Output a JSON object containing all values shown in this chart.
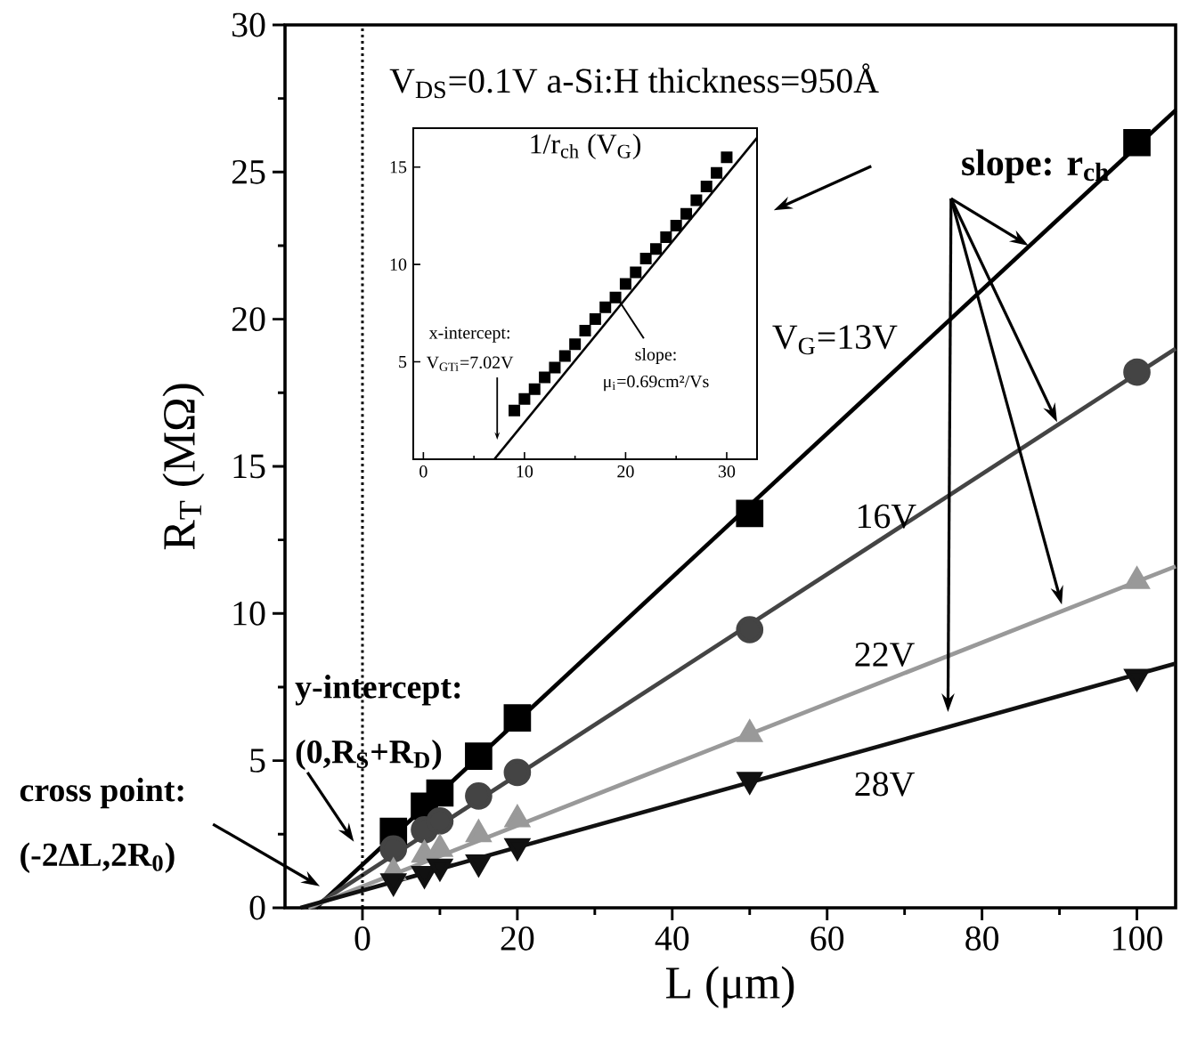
{
  "chart_data": [
    {
      "type": "scatter",
      "xlabel": "L (μm)",
      "ylabel": "R$_{T}$ (MΩ)",
      "xlim": [
        -10,
        105
      ],
      "ylim": [
        0,
        30
      ],
      "xticks": [
        0,
        20,
        40,
        60,
        80,
        100
      ],
      "yticks": [
        0,
        5,
        10,
        15,
        20,
        25,
        30
      ],
      "x": [
        4,
        8,
        10,
        15,
        20,
        50,
        100
      ],
      "series": [
        {
          "color": "#000000",
          "marker": "square",
          "values": [
            2.6,
            3.45,
            3.9,
            5.15,
            6.45,
            13.4,
            26
          ]
        },
        {
          "color": "#444444",
          "marker": "circle",
          "values": [
            2.0,
            2.65,
            2.95,
            3.8,
            4.6,
            9.45,
            18.2
          ]
        },
        {
          "color": "#999999",
          "marker": "triangle",
          "values": [
            1.2,
            1.8,
            2.0,
            2.5,
            3.0,
            5.9,
            11.1
          ]
        },
        {
          "color": "#111111",
          "marker": "triangle-down",
          "values": [
            0.9,
            1.15,
            1.4,
            1.55,
            2.1,
            4.35,
            7.85
          ]
        },
        {
          "type": "line",
          "name": "V$_{G}$=13V",
          "color": "#000000",
          "x": [
            -6,
            105
          ],
          "values": [
            0,
            27.1
          ]
        },
        {
          "type": "line",
          "name": "16V",
          "color": "#444444",
          "x": [
            -6.5,
            105
          ],
          "values": [
            0,
            19.0
          ]
        },
        {
          "type": "line",
          "name": "22V",
          "color": "#999999",
          "x": [
            -7,
            105
          ],
          "values": [
            0,
            11.6
          ]
        },
        {
          "type": "line",
          "name": "28V",
          "color": "#111111",
          "x": [
            -8,
            105
          ],
          "values": [
            0,
            8.3
          ]
        }
      ],
      "ref_lines": [
        {
          "axis": "x",
          "value": 0,
          "line_style": "dotted"
        }
      ],
      "annotations": [
        "V$_{DS}$=0.1V a-Si:H thickness=950Å",
        "slope: r$_{ch}$",
        "y-intercept:",
        "(0,R$_{S}$+R$_{D}$)",
        "cross point:",
        "(-2ΔL,2R$_{0}$)"
      ]
    },
    {
      "type": "scatter",
      "title": "1/r$_{ch}$ (V$_{G}$)",
      "xlim": [
        -1,
        33
      ],
      "ylim": [
        0,
        17
      ],
      "xticks": [
        0,
        10,
        20,
        30
      ],
      "yticks": [
        5,
        10,
        15
      ],
      "x": [
        9,
        10,
        11,
        12,
        13,
        14,
        15,
        16,
        17,
        18,
        19,
        20,
        21,
        22,
        23,
        24,
        25,
        26,
        27,
        28,
        29,
        30
      ],
      "series": [
        {
          "color": "#000000",
          "marker": "square",
          "values": [
            2.5,
            3.1,
            3.6,
            4.2,
            4.7,
            5.3,
            5.9,
            6.6,
            7.2,
            7.8,
            8.3,
            9.0,
            9.6,
            10.3,
            10.8,
            11.4,
            12.0,
            12.6,
            13.3,
            14.0,
            14.7,
            15.5
          ]
        },
        {
          "type": "line",
          "color": "#000000",
          "x": [
            7.02,
            33
          ],
          "values": [
            0,
            16.5
          ]
        }
      ],
      "annotations": [
        "x-intercept:",
        "V$_{GTi}$=7.02V",
        "slope:",
        "μ$_{i}$=0.69cm²/Vs"
      ]
    }
  ]
}
